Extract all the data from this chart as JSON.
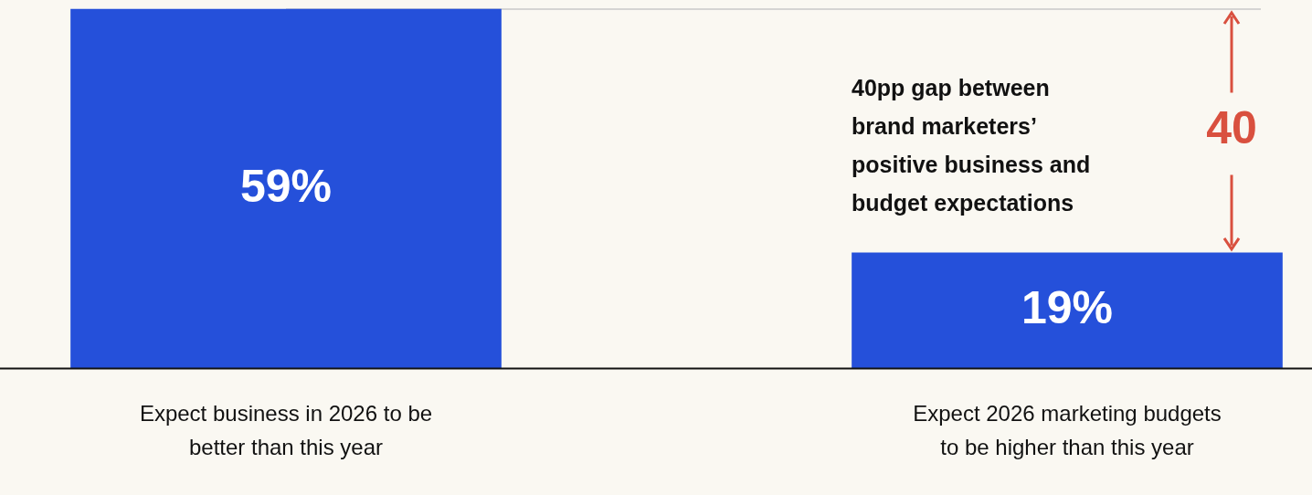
{
  "chart_data": {
    "type": "bar",
    "categories": [
      "Expect business in 2026 to be better than this year",
      "Expect 2026 marketing budgets to be higher than this year"
    ],
    "values": [
      59,
      19
    ],
    "value_labels": [
      "59%",
      "19%"
    ],
    "color": "#2550da",
    "ref_lines": [
      {
        "axis": "y",
        "value": 59,
        "color": "#c8c8c8"
      }
    ],
    "annotations": [
      "40pp gap between brand marketers’ positive business and budget expectations",
      "40"
    ],
    "legend": false
  }
}
